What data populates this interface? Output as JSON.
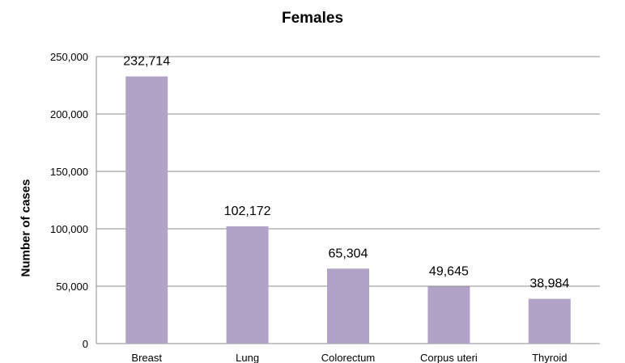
{
  "chart_data": {
    "type": "bar",
    "title": "Females",
    "xlabel": "",
    "ylabel": "Number of cases",
    "categories": [
      "Breast",
      "Lung",
      "Colorectum",
      "Corpus uteri",
      "Thyroid"
    ],
    "values": [
      232714,
      102172,
      65304,
      49645,
      38984
    ],
    "data_labels": [
      "232,714",
      "102,172",
      "65,304",
      "49,645",
      "38,984"
    ],
    "ylim": [
      0,
      250000
    ],
    "yticks": [
      0,
      50000,
      100000,
      150000,
      200000,
      250000
    ],
    "ytick_labels": [
      "0",
      "50,000",
      "100,000",
      "150,000",
      "200,000",
      "250,000"
    ],
    "grid": true,
    "legend": "none",
    "colors": {
      "bar": "#B1A2C8",
      "grid": "#8C8C8C",
      "axis": "#8C8C8C",
      "text": "#000000"
    }
  }
}
